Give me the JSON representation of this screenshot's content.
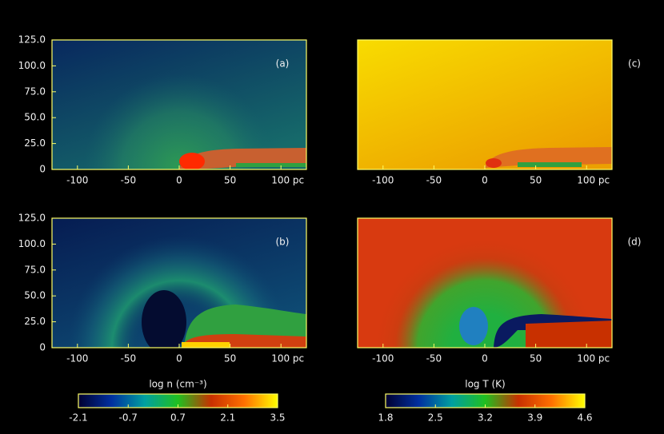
{
  "chart_data": [
    {
      "type": "image",
      "label": "(a)",
      "xlim": [
        -125,
        125
      ],
      "ylim": [
        0,
        125
      ],
      "xticks": [
        -100,
        -50,
        0,
        50,
        {
          "value": 100,
          "label": "100 pc"
        }
      ],
      "yticks": [
        0,
        {
          "value": 25,
          "label": "25.0"
        },
        {
          "value": 50,
          "label": "50.0"
        },
        {
          "value": 75,
          "label": "75.0"
        },
        {
          "value": 100,
          "label": "100.0"
        },
        {
          "value": 125,
          "label": "125.0"
        }
      ]
    },
    {
      "type": "image",
      "label": "(b)",
      "xlim": [
        -125,
        125
      ],
      "ylim": [
        0,
        125
      ],
      "xticks": [
        -100,
        -50,
        0,
        50,
        {
          "value": 100,
          "label": "100 pc"
        }
      ],
      "yticks": [
        0,
        {
          "value": 25,
          "label": "25.0"
        },
        {
          "value": 50,
          "label": "50.0"
        },
        {
          "value": 75,
          "label": "75.0"
        },
        {
          "value": 100,
          "label": "100.0"
        },
        {
          "value": 125,
          "label": "125.0"
        }
      ]
    },
    {
      "type": "image",
      "label": "(c)",
      "xlim": [
        -125,
        125
      ],
      "ylim": [
        0,
        125
      ],
      "xticks": [
        -100,
        -50,
        0,
        50,
        {
          "value": 100,
          "label": "100 pc"
        }
      ]
    },
    {
      "type": "image",
      "label": "(d)",
      "xlim": [
        -125,
        125
      ],
      "ylim": [
        0,
        125
      ],
      "xticks": [
        -100,
        -50,
        0,
        50,
        {
          "value": 100,
          "label": "100 pc"
        }
      ]
    },
    {
      "type": "colorbar",
      "title": "log n (cm⁻³)",
      "clim": [
        -2.1,
        3.5
      ],
      "ticks": [
        -2.1,
        -0.7,
        0.7,
        2.1,
        3.5
      ],
      "colormap": [
        "#000030",
        "#0030a0",
        "#00a0a0",
        "#20c020",
        "#c83000",
        "#ff7000",
        "#ffff00"
      ]
    },
    {
      "type": "colorbar",
      "title": "log T (K)",
      "clim": [
        1.8,
        4.6
      ],
      "ticks": [
        1.8,
        2.5,
        3.2,
        3.9,
        4.6
      ],
      "colormap": [
        "#000030",
        "#0030a0",
        "#00a0a0",
        "#20c020",
        "#c83000",
        "#ff7000",
        "#ffff00"
      ]
    }
  ]
}
